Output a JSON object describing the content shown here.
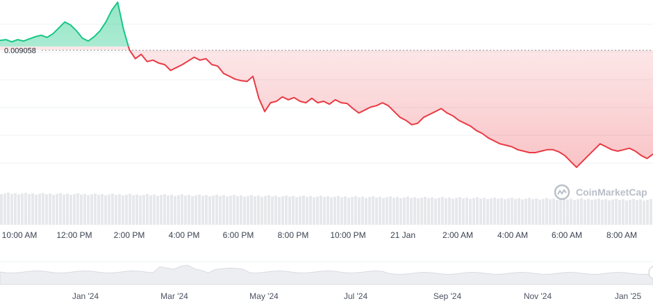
{
  "colors": {
    "up": "#16c784",
    "down": "#ea3943",
    "grid": "#eef0f3",
    "volume": "#e6e8ec",
    "navigator": "#d8dbe0",
    "baseline": "#8a9099"
  },
  "watermark": {
    "text": "CoinMarketCap",
    "icon": "coinmarketcap-logo-icon"
  },
  "chart_data": {
    "type": "area",
    "reference_price": 0.009058,
    "reference_label": "0.009058",
    "x_tick_labels": [
      "10:00 AM",
      "12:00 PM",
      "2:00 PM",
      "4:00 PM",
      "6:00 PM",
      "8:00 PM",
      "10:00 PM",
      "21 Jan",
      "2:00 AM",
      "4:00 AM",
      "6:00 AM",
      "8:00 AM"
    ],
    "navigator_tick_labels": [
      "Jan '24",
      "Mar '24",
      "May '24",
      "Jul '24",
      "Sep '24",
      "Nov '24",
      "Jan '25"
    ],
    "ylim": [
      0.0081,
      0.0094
    ],
    "grid": true,
    "series": [
      {
        "x_range": [
          "09:00",
          "10:00 (21 Jan)"
        ],
        "values": [
          0.009125,
          0.00913,
          0.009115,
          0.00913,
          0.00912,
          0.009135,
          0.00915,
          0.00916,
          0.009145,
          0.00917,
          0.00921,
          0.00925,
          0.00923,
          0.00919,
          0.00914,
          0.00912,
          0.00915,
          0.00919,
          0.00925,
          0.00933,
          0.009385,
          0.0092,
          0.00906,
          0.009,
          0.00903,
          0.00898,
          0.00899,
          0.00897,
          0.00896,
          0.00892,
          0.00894,
          0.00896,
          0.008985,
          0.00901,
          0.00899,
          0.009,
          0.00896,
          0.00895,
          0.0089,
          0.00888,
          0.00886,
          0.00885,
          0.008845,
          0.00888,
          0.00873,
          0.00864,
          0.0087,
          0.00871,
          0.00874,
          0.00872,
          0.008735,
          0.00871,
          0.0087,
          0.00873,
          0.0087,
          0.00871,
          0.00869,
          0.00872,
          0.0087,
          0.008695,
          0.00866,
          0.00863,
          0.00865,
          0.00867,
          0.00868,
          0.0087,
          0.00868,
          0.00864,
          0.0086,
          0.00858,
          0.00855,
          0.00856,
          0.0086,
          0.00862,
          0.00864,
          0.00866,
          0.00863,
          0.00861,
          0.00858,
          0.00856,
          0.00854,
          0.00851,
          0.00849,
          0.00846,
          0.00844,
          0.00842,
          0.00841,
          0.0084,
          0.00838,
          0.00837,
          0.00836,
          0.00836,
          0.00837,
          0.00838,
          0.00838,
          0.008365,
          0.00834,
          0.0083,
          0.00826,
          0.0083,
          0.00834,
          0.00838,
          0.00842,
          0.0084,
          0.00838,
          0.00837,
          0.00838,
          0.00839,
          0.00837,
          0.00834,
          0.00832,
          0.00835
        ]
      }
    ]
  }
}
